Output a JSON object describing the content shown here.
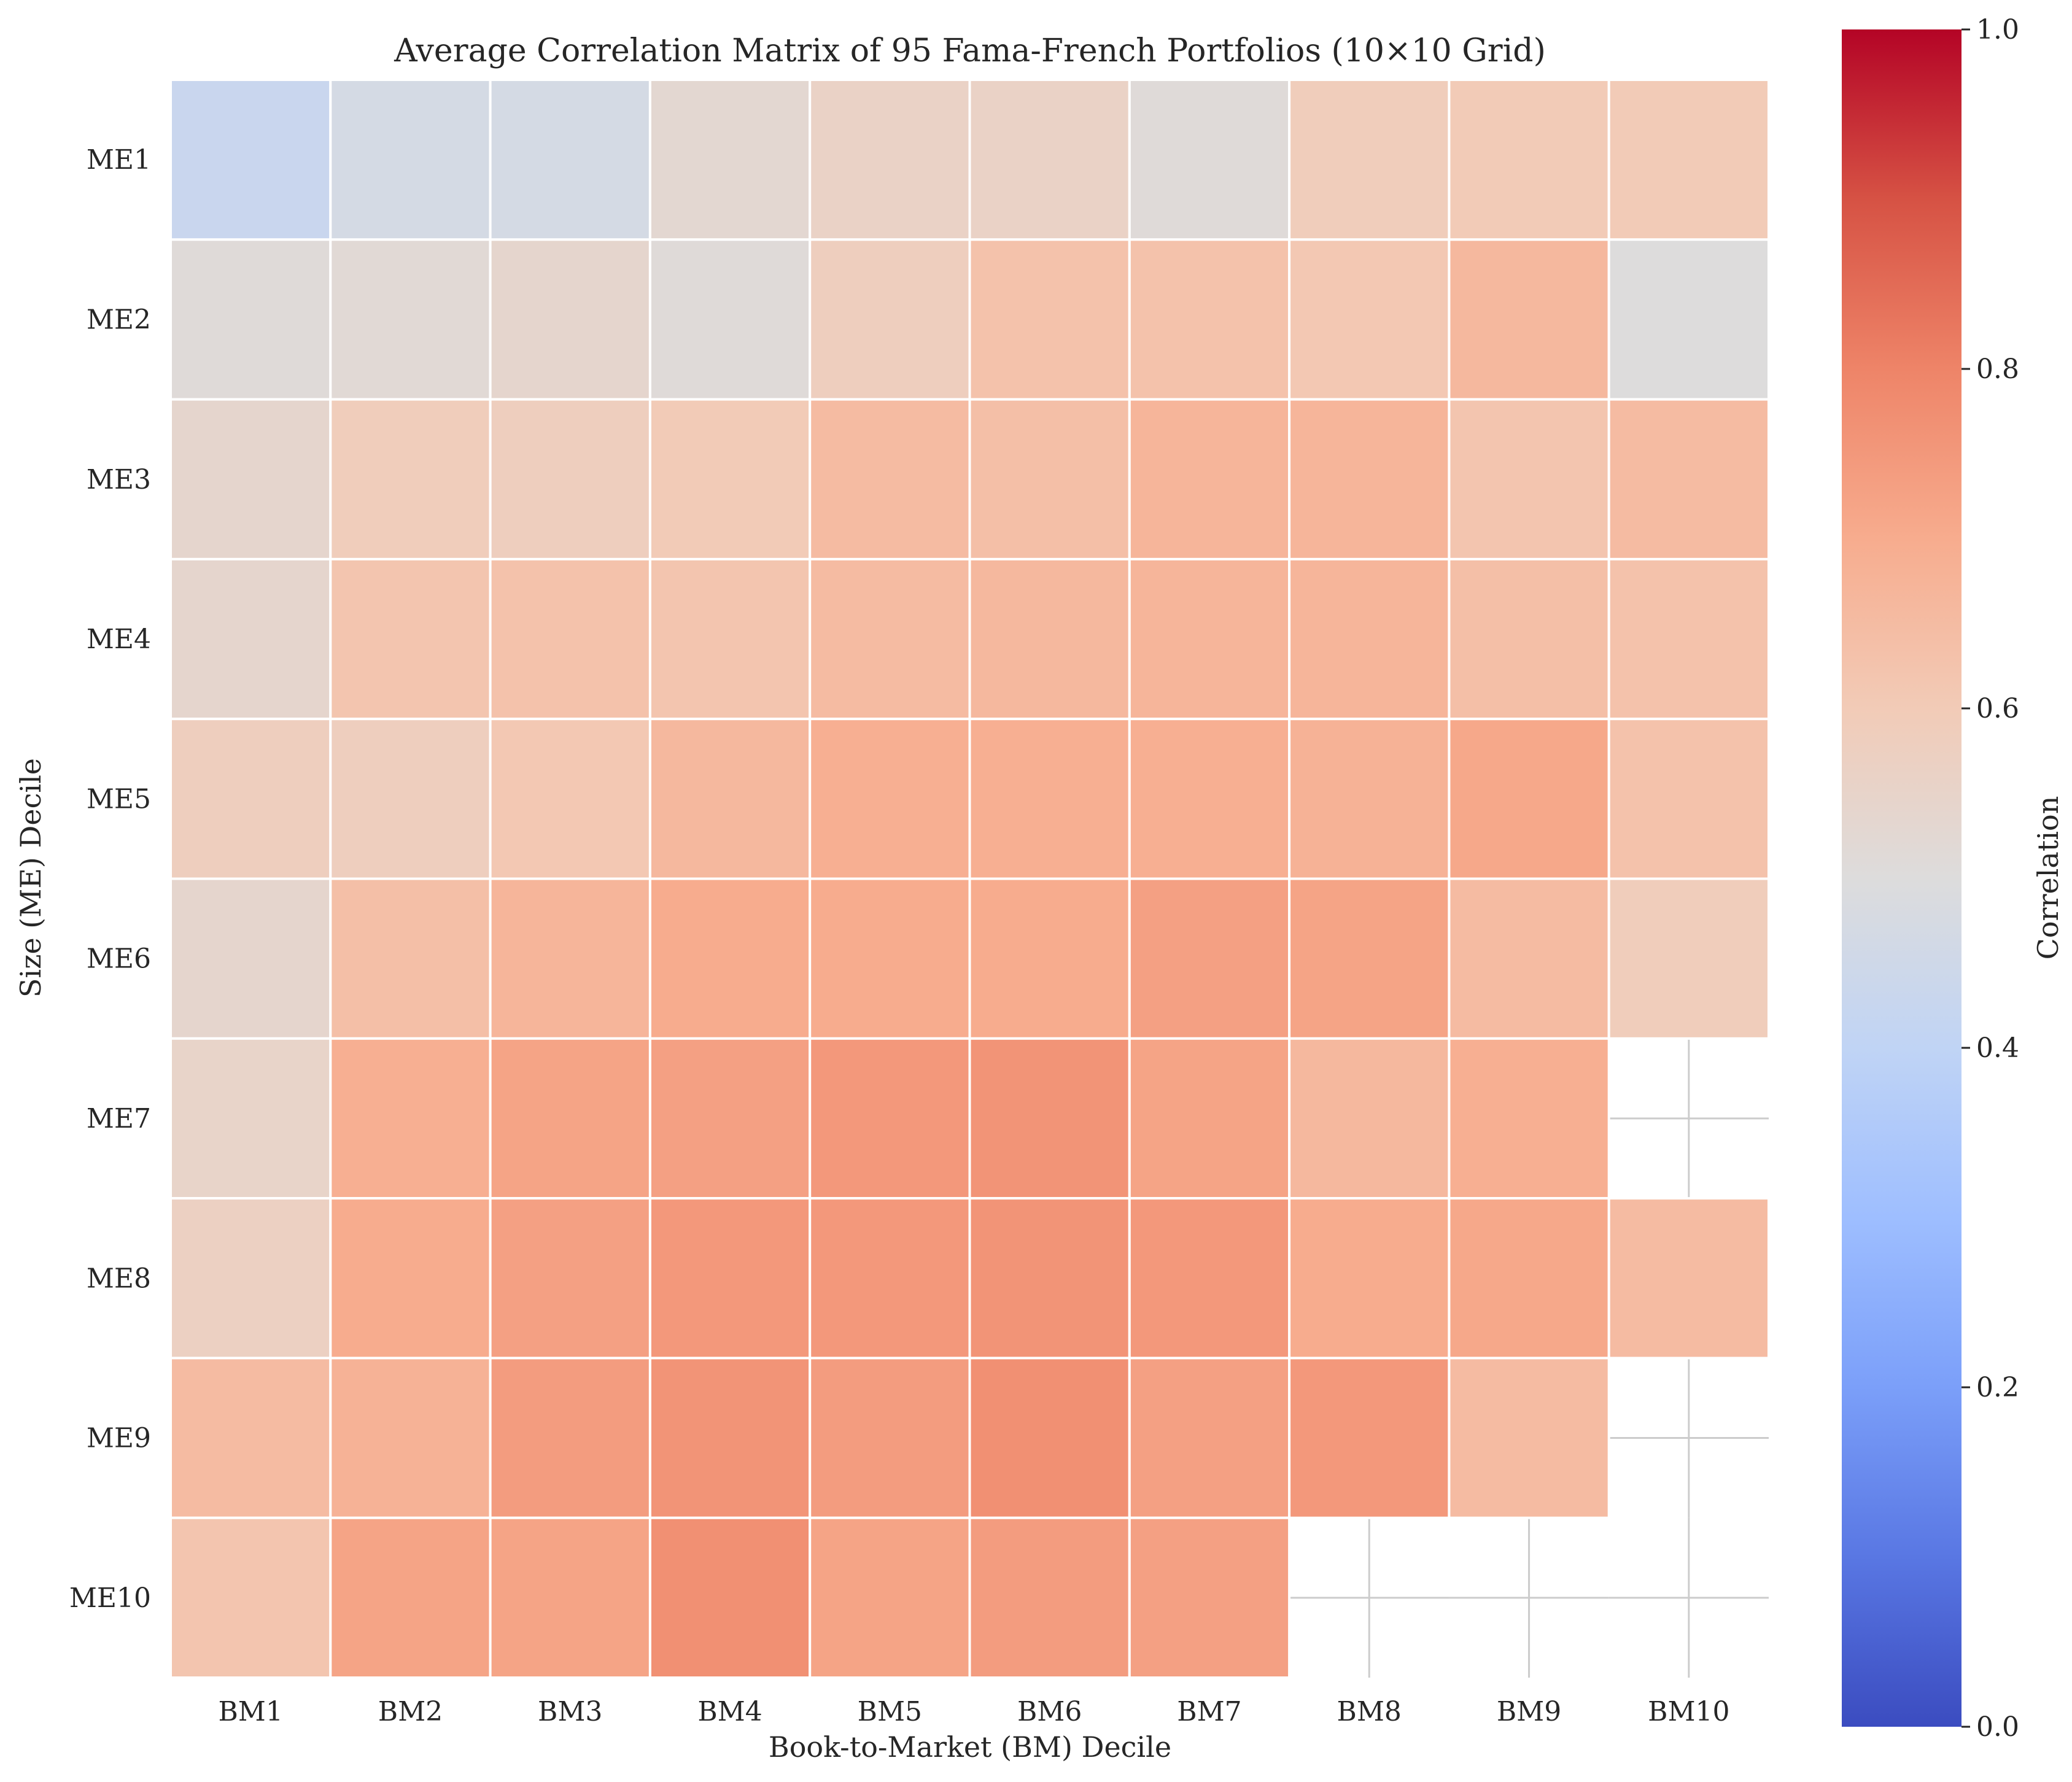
{
  "chart_data": {
    "type": "heatmap",
    "title": "Average Correlation Matrix of 95 Fama-French Portfolios (10×10 Grid)",
    "xlabel": "Book-to-Market (BM) Decile",
    "ylabel": "Size (ME) Decile",
    "x_categories": [
      "BM1",
      "BM2",
      "BM3",
      "BM4",
      "BM5",
      "BM6",
      "BM7",
      "BM8",
      "BM9",
      "BM10"
    ],
    "y_categories": [
      "ME1",
      "ME2",
      "ME3",
      "ME4",
      "ME5",
      "ME6",
      "ME7",
      "ME8",
      "ME9",
      "ME10"
    ],
    "values": [
      [
        0.43,
        0.47,
        0.47,
        0.53,
        0.56,
        0.56,
        0.51,
        0.59,
        0.6,
        0.6
      ],
      [
        0.51,
        0.52,
        0.54,
        0.51,
        0.58,
        0.63,
        0.63,
        0.61,
        0.66,
        0.5
      ],
      [
        0.54,
        0.59,
        0.58,
        0.6,
        0.65,
        0.64,
        0.67,
        0.67,
        0.62,
        0.65
      ],
      [
        0.54,
        0.62,
        0.63,
        0.62,
        0.65,
        0.66,
        0.67,
        0.67,
        0.64,
        0.63
      ],
      [
        0.58,
        0.58,
        0.61,
        0.66,
        0.69,
        0.69,
        0.69,
        0.68,
        0.71,
        0.63
      ],
      [
        0.54,
        0.64,
        0.67,
        0.7,
        0.7,
        0.7,
        0.73,
        0.72,
        0.65,
        0.59
      ],
      [
        0.55,
        0.69,
        0.72,
        0.73,
        0.75,
        0.76,
        0.72,
        0.66,
        0.69,
        null
      ],
      [
        0.57,
        0.7,
        0.73,
        0.75,
        0.75,
        0.76,
        0.75,
        0.7,
        0.71,
        0.65
      ],
      [
        0.65,
        0.68,
        0.74,
        0.76,
        0.74,
        0.77,
        0.73,
        0.75,
        0.65,
        null
      ],
      [
        0.62,
        0.72,
        0.72,
        0.77,
        0.72,
        0.74,
        0.73,
        null,
        null,
        null
      ]
    ],
    "colorbar": {
      "label": "Correlation",
      "range": [
        0.0,
        1.0
      ],
      "ticks": [
        "0.0",
        "0.2",
        "0.4",
        "0.6",
        "0.8",
        "1.0"
      ],
      "colormap": "coolwarm"
    },
    "grid": "on-empty-cells",
    "cell_border_color": "#ffffff",
    "grid_color": "#cccccc"
  }
}
